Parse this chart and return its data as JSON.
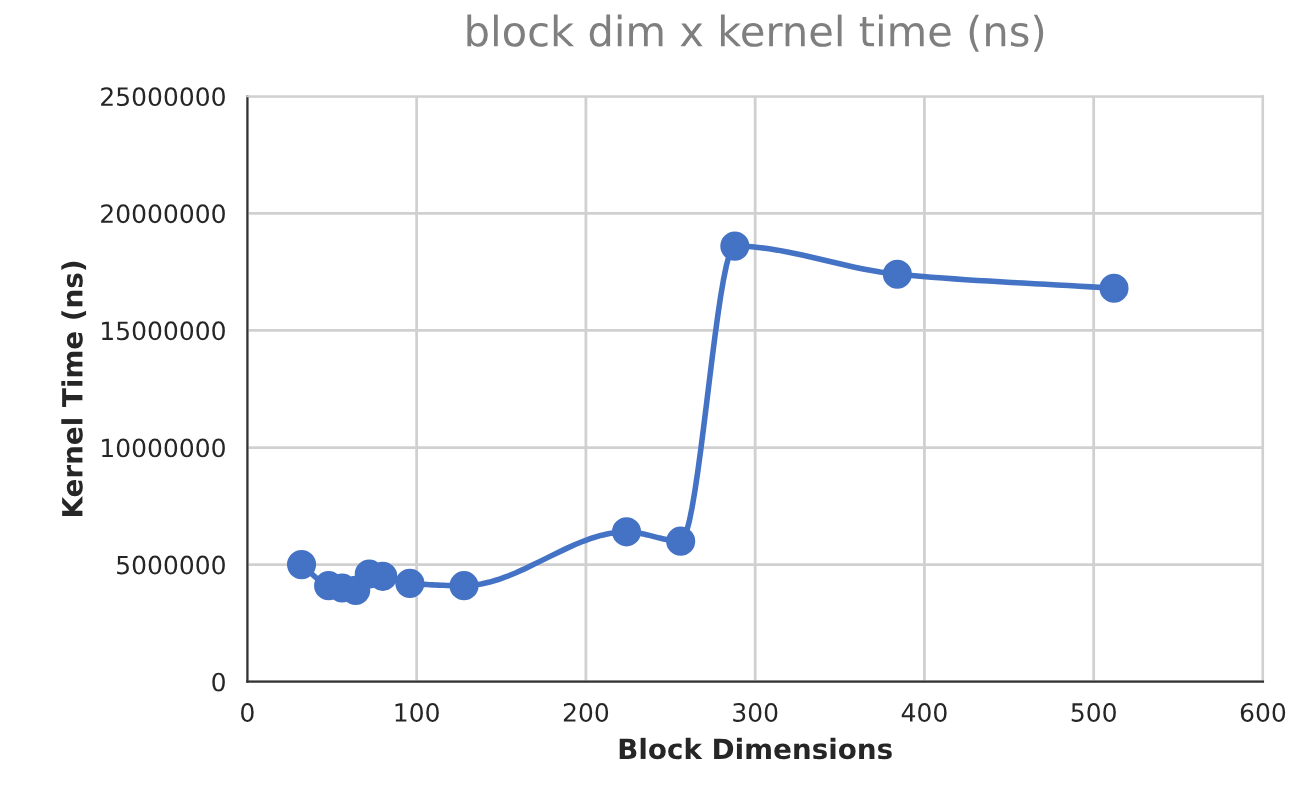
{
  "chart_data": {
    "type": "line",
    "title": "block dim x kernel time (ns)",
    "xlabel": "Block Dimensions",
    "ylabel": "Kernel Time (ns)",
    "x": [
      32,
      48,
      56,
      64,
      72,
      80,
      96,
      128,
      224,
      256,
      288,
      384,
      512
    ],
    "series": [
      {
        "color": "#4472c4",
        "values": [
          5000000,
          4100000,
          4000000,
          3900000,
          4600000,
          4500000,
          4200000,
          4100000,
          6400000,
          6000000,
          18600000,
          17400000,
          16800000
        ]
      }
    ],
    "xlim": [
      0,
      600
    ],
    "xticks": [
      0,
      100,
      200,
      300,
      400,
      500,
      600
    ],
    "ylim": [
      0,
      25000000
    ],
    "yticks": [
      0,
      5000000,
      10000000,
      15000000,
      20000000,
      25000000
    ],
    "grid": true,
    "marker": "circle",
    "line_style": "solid",
    "legend": false
  }
}
